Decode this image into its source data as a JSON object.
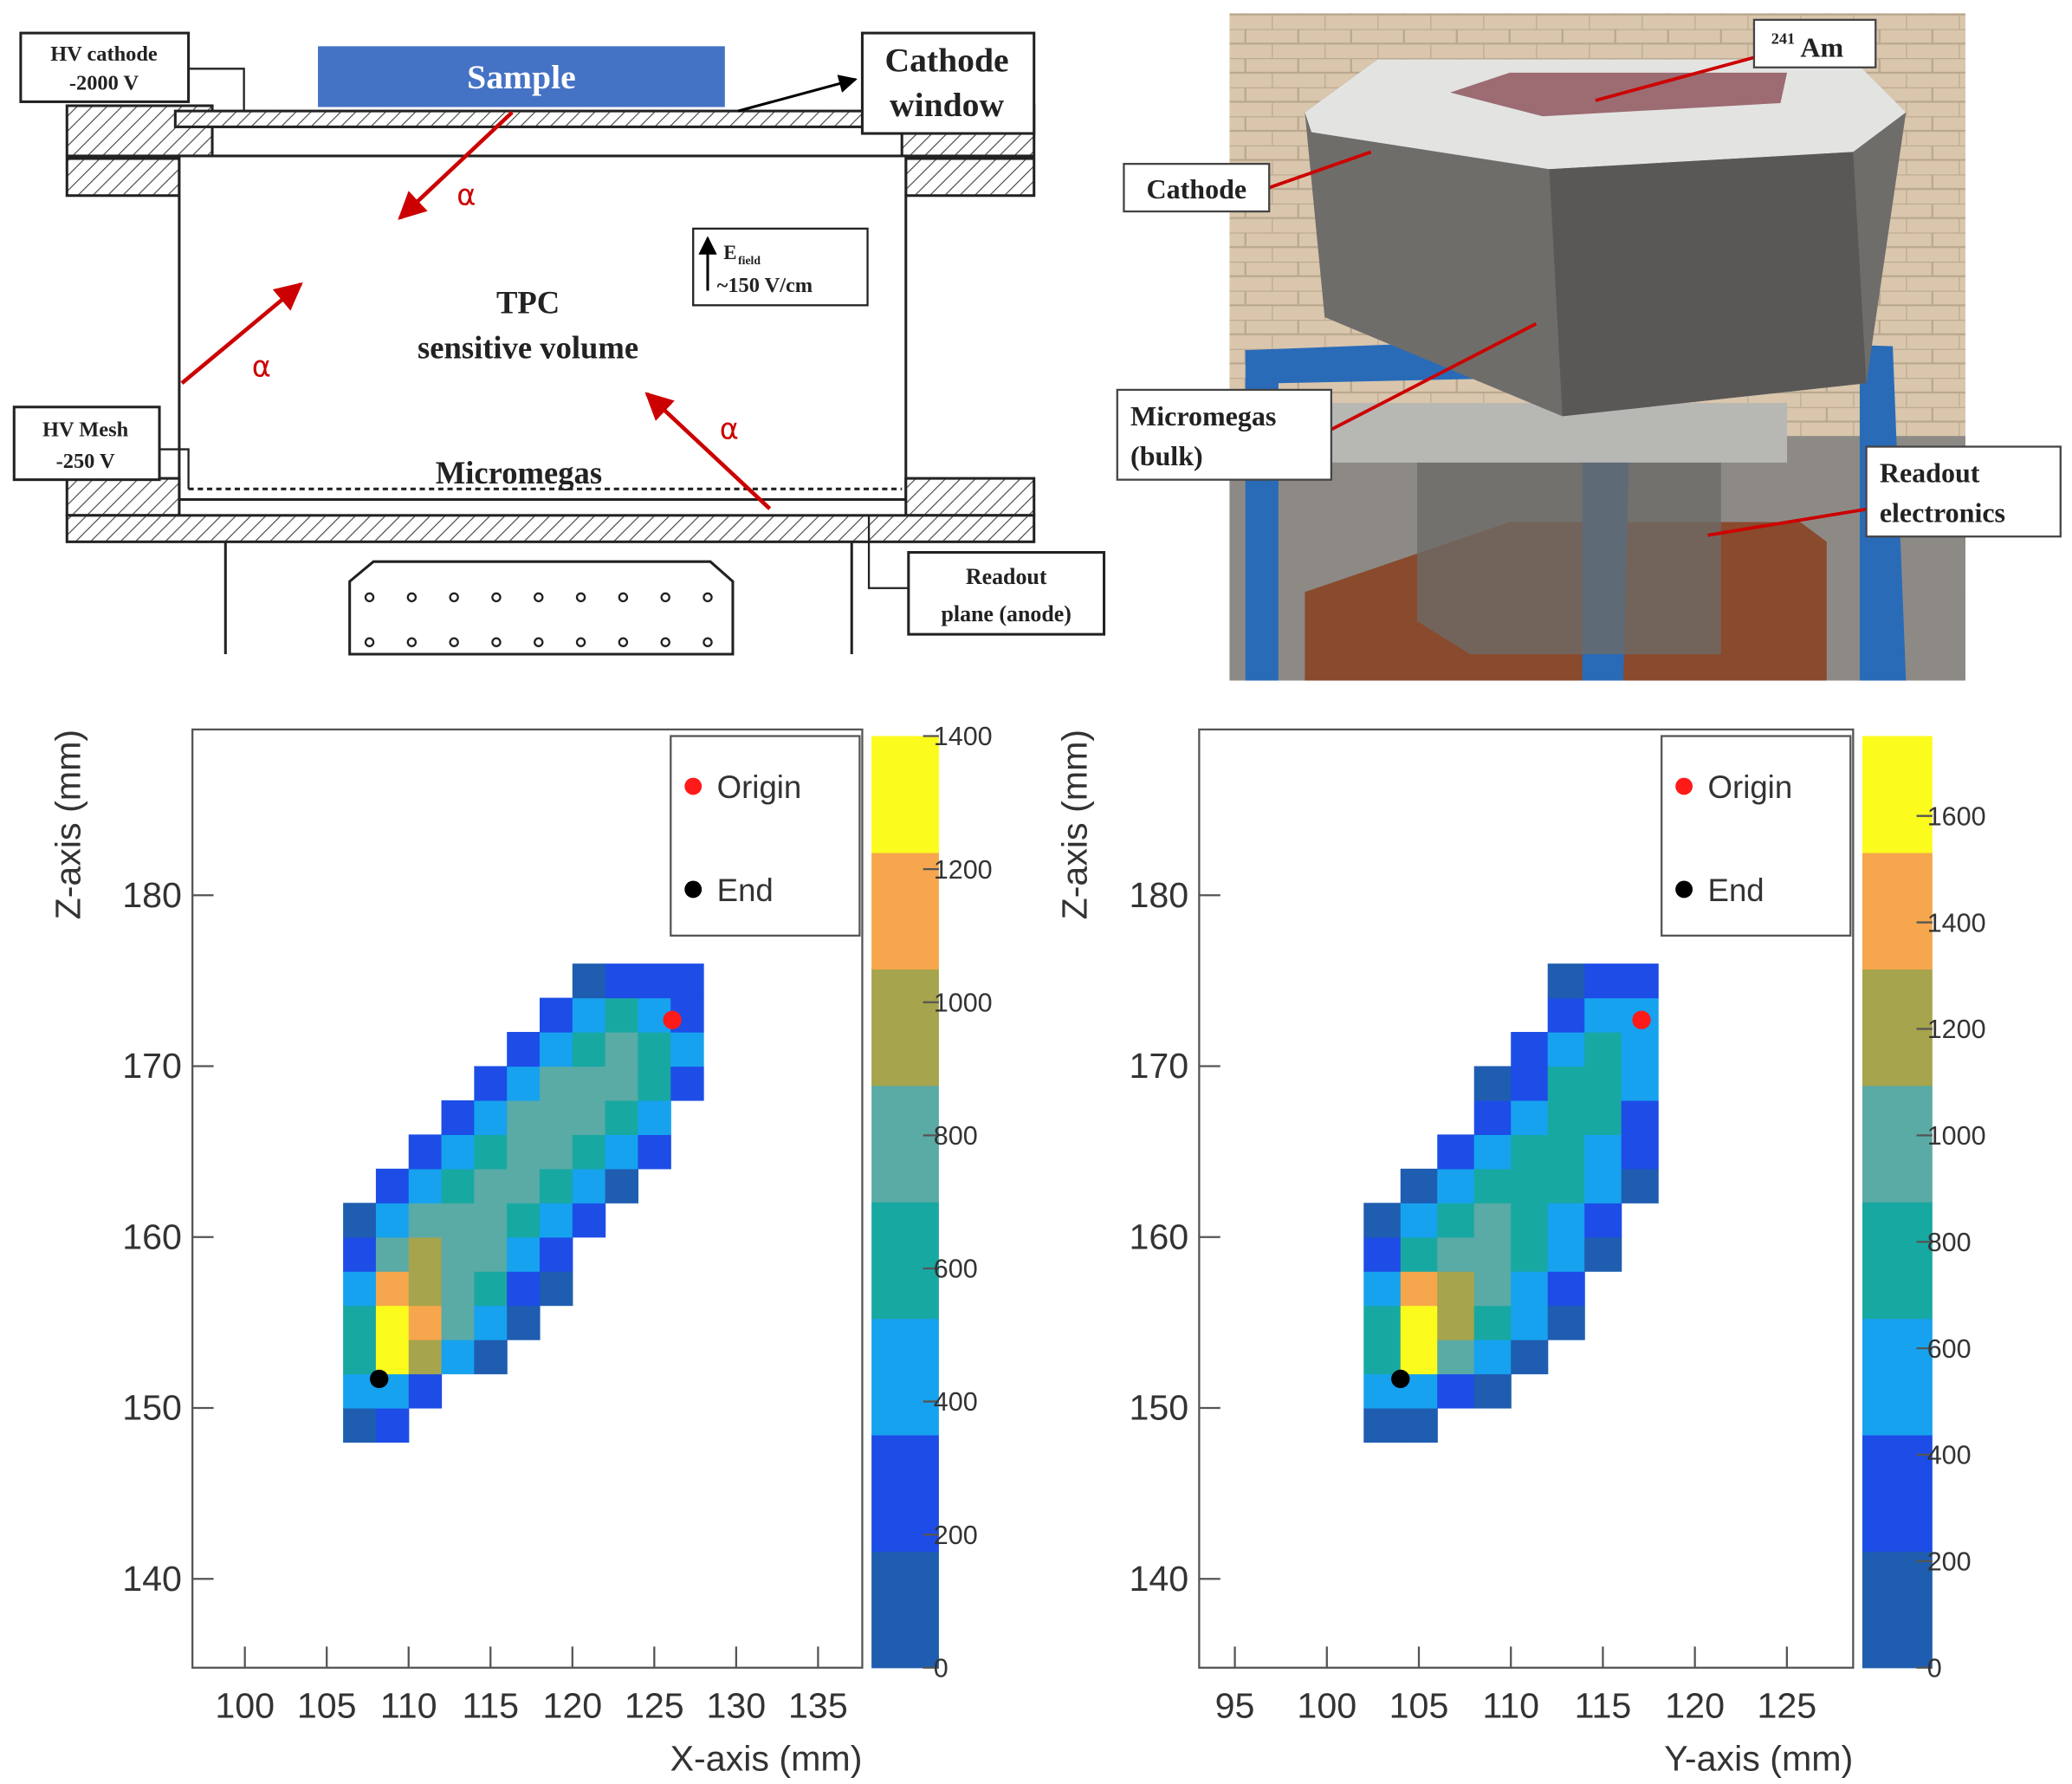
{
  "diagram": {
    "hv_cathode": [
      "HV cathode",
      "-2000 V"
    ],
    "sample": "Sample",
    "cathode_window": [
      "Cathode",
      "window"
    ],
    "alpha": "α",
    "tpc": [
      "TPC",
      "sensitive volume"
    ],
    "field": {
      "symbol": "E",
      "subscript": "field",
      "value": "~150 V/cm"
    },
    "hv_mesh": [
      "HV Mesh",
      "-250 V"
    ],
    "micromegas": "Micromegas",
    "readout": [
      "Readout",
      "plane (anode)"
    ]
  },
  "photo": {
    "source": {
      "mass": "241",
      "element": "Am"
    },
    "cathode": "Cathode",
    "micromegas": [
      "Micromegas",
      "(bulk)"
    ],
    "readout": [
      "Readout",
      "electronics"
    ]
  },
  "chart_data": [
    {
      "type": "heatmap",
      "xlabel": "X-axis (mm)",
      "ylabel": "Z-axis (mm)",
      "xlim": [
        96.8,
        137.7
      ],
      "ylim": [
        134.8,
        189.7
      ],
      "xticks": [
        100,
        105,
        110,
        115,
        120,
        125,
        130,
        135
      ],
      "yticks": [
        140,
        150,
        160,
        170,
        180
      ],
      "zlim": [
        0,
        1400
      ],
      "zticks": [
        0,
        200,
        400,
        600,
        800,
        1000,
        1200,
        1400
      ],
      "palette": [
        "#1f5db0",
        "#1d4de6",
        "#16a2ef",
        "#18a8a2",
        "#5aaaa6",
        "#a6a44c",
        "#f6a64c",
        "#fbfb1e"
      ],
      "x_bins": [
        106,
        108,
        110,
        112,
        114,
        116,
        118,
        120,
        122,
        124,
        126,
        128
      ],
      "y_bins": [
        148,
        150,
        152,
        154,
        156,
        158,
        160,
        162,
        164,
        166,
        168,
        170,
        172,
        174,
        176
      ],
      "values": [
        [
          120,
          180,
          null,
          null,
          null,
          null,
          null,
          null,
          null,
          null,
          null
        ],
        [
          350,
          500,
          300,
          null,
          null,
          null,
          null,
          null,
          null,
          null,
          null
        ],
        [
          600,
          1350,
          900,
          450,
          150,
          null,
          null,
          null,
          null,
          null,
          null
        ],
        [
          650,
          1390,
          1100,
          700,
          400,
          150,
          null,
          null,
          null,
          null,
          null
        ],
        [
          500,
          1200,
          1000,
          800,
          600,
          300,
          150,
          null,
          null,
          null,
          null
        ],
        [
          300,
          700,
          900,
          850,
          700,
          500,
          250,
          null,
          null,
          null,
          null
        ],
        [
          150,
          400,
          700,
          800,
          750,
          650,
          450,
          200,
          null,
          null,
          null
        ],
        [
          null,
          200,
          450,
          650,
          750,
          700,
          600,
          400,
          150,
          null,
          null
        ],
        [
          null,
          null,
          200,
          450,
          650,
          750,
          700,
          600,
          450,
          200,
          null
        ],
        [
          null,
          null,
          null,
          250,
          500,
          700,
          750,
          700,
          650,
          450,
          null
        ],
        [
          null,
          null,
          null,
          null,
          250,
          500,
          700,
          750,
          700,
          550,
          300
        ],
        [
          null,
          null,
          null,
          null,
          null,
          250,
          450,
          650,
          700,
          600,
          350
        ],
        [
          null,
          null,
          null,
          null,
          null,
          null,
          200,
          400,
          550,
          500,
          300
        ],
        [
          null,
          null,
          null,
          null,
          null,
          null,
          null,
          150,
          250,
          300,
          200
        ]
      ],
      "series": [
        {
          "name": "Origin",
          "color": "#ff1a1a",
          "x": [
            126.1
          ],
          "y": [
            172.7
          ]
        },
        {
          "name": "End",
          "color": "#000000",
          "x": [
            108.2
          ],
          "y": [
            151.7
          ]
        }
      ]
    },
    {
      "type": "heatmap",
      "xlabel": "Y-axis (mm)",
      "ylabel": "Z-axis (mm)",
      "xlim": [
        93.06,
        128.6
      ],
      "ylim": [
        134.8,
        189.7
      ],
      "xticks": [
        95,
        100,
        105,
        110,
        115,
        120,
        125
      ],
      "yticks": [
        140,
        150,
        160,
        170,
        180
      ],
      "zlim": [
        0,
        1750
      ],
      "zticks": [
        0,
        200,
        400,
        600,
        800,
        1000,
        1200,
        1400,
        1600
      ],
      "palette": [
        "#1f5db0",
        "#1d4de6",
        "#16a2ef",
        "#18a8a2",
        "#5aaaa6",
        "#a6a44c",
        "#f6a64c",
        "#fbfb1e"
      ],
      "x_bins": [
        102,
        104,
        106,
        108,
        110,
        112,
        114,
        116,
        118
      ],
      "y_bins": [
        148,
        150,
        152,
        154,
        156,
        158,
        160,
        162,
        164,
        166,
        168,
        170,
        172,
        174,
        176
      ],
      "values": [
        [
          150,
          200,
          null,
          null,
          null,
          null,
          null,
          null
        ],
        [
          450,
          600,
          300,
          150,
          null,
          null,
          null,
          null
        ],
        [
          700,
          1600,
          1000,
          500,
          200,
          null,
          null,
          null
        ],
        [
          800,
          1700,
          1300,
          800,
          450,
          150,
          null,
          null
        ],
        [
          600,
          1400,
          1250,
          900,
          650,
          300,
          null,
          null
        ],
        [
          300,
          800,
          1000,
          950,
          750,
          450,
          200,
          null
        ],
        [
          150,
          450,
          750,
          900,
          800,
          600,
          300,
          null
        ],
        [
          null,
          200,
          500,
          750,
          850,
          700,
          450,
          150
        ],
        [
          null,
          null,
          250,
          550,
          800,
          750,
          600,
          250
        ],
        [
          null,
          null,
          null,
          300,
          650,
          800,
          700,
          400
        ],
        [
          null,
          null,
          null,
          150,
          400,
          750,
          800,
          550
        ],
        [
          null,
          null,
          null,
          null,
          250,
          550,
          750,
          650
        ],
        [
          null,
          null,
          null,
          null,
          null,
          300,
          550,
          500
        ],
        [
          null,
          null,
          null,
          null,
          null,
          150,
          300,
          350
        ]
      ],
      "series": [
        {
          "name": "Origin",
          "color": "#ff1a1a",
          "x": [
            117.1
          ],
          "y": [
            172.7
          ]
        },
        {
          "name": "End",
          "color": "#000000",
          "x": [
            104.0
          ],
          "y": [
            151.7
          ]
        }
      ]
    }
  ]
}
